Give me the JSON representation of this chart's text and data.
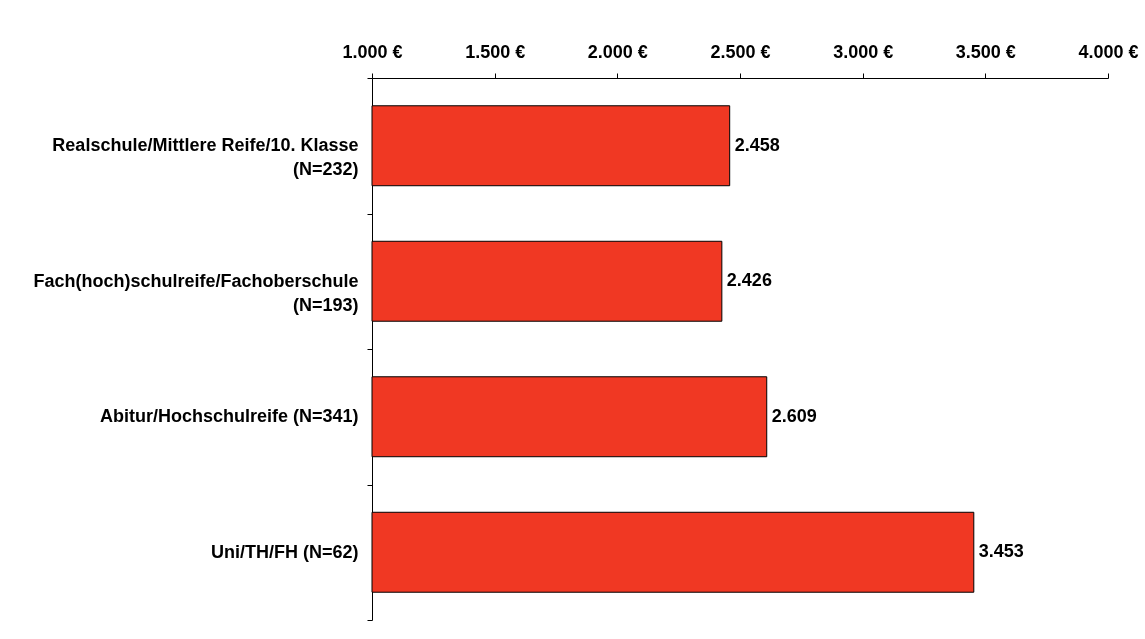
{
  "chart_data": {
    "type": "bar",
    "orientation": "horizontal",
    "categories": [
      "Realschule/Mittlere Reife/10. Klasse\n(N=232)",
      "Fach(hoch)schulreife/Fachoberschule\n(N=193)",
      "Abitur/Hochschulreife (N=341)",
      "Uni/TH/FH (N=62)"
    ],
    "values": [
      2458,
      2426,
      2609,
      3453
    ],
    "color": "#f03823",
    "value_labels": [
      "2.458",
      "2.426",
      "2.609",
      "3.453"
    ],
    "xlim": [
      1000,
      4000
    ],
    "xticks": [
      {
        "value": 1000,
        "label": "1.000 €"
      },
      {
        "value": 1500,
        "label": "1.500 €"
      },
      {
        "value": 2000,
        "label": "2.000 €"
      },
      {
        "value": 2500,
        "label": "2.500 €"
      },
      {
        "value": 3000,
        "label": "3.000 €"
      },
      {
        "value": 3500,
        "label": "3.500 €"
      },
      {
        "value": 4000,
        "label": "4.000 €"
      }
    ]
  }
}
